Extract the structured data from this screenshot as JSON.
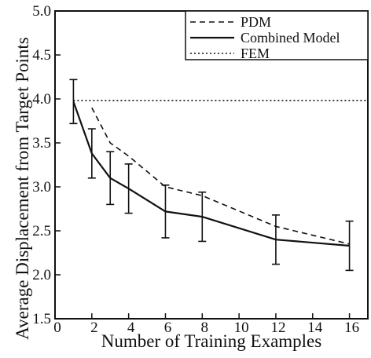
{
  "chart_data": {
    "type": "line",
    "title": "",
    "xlabel": "Number of Training Examples",
    "ylabel": "Average Displacement from Target Points",
    "xlim": [
      0,
      17
    ],
    "ylim": [
      1.5,
      5.0
    ],
    "xticks": [
      0,
      2,
      4,
      6,
      8,
      10,
      12,
      14,
      16
    ],
    "yticks": [
      1.5,
      2.0,
      2.5,
      3.0,
      3.5,
      4.0,
      4.5,
      5.0
    ],
    "ytick_labels": [
      "1.5",
      "2.0",
      "2.5",
      "3.0",
      "3.5",
      "4.0",
      "4.5",
      "5.0"
    ],
    "grid": false,
    "legend_position": "top-right",
    "series": [
      {
        "name": "PDM",
        "style": "dashed",
        "color": "#111111",
        "x": [
          2,
          3,
          4,
          6,
          8,
          12,
          16
        ],
        "y": [
          3.9,
          3.5,
          3.35,
          3.0,
          2.9,
          2.55,
          2.35
        ]
      },
      {
        "name": "Combined Model",
        "style": "solid",
        "color": "#111111",
        "x": [
          1,
          2,
          3,
          4,
          6,
          8,
          12,
          16
        ],
        "y": [
          3.97,
          3.38,
          3.1,
          2.98,
          2.72,
          2.66,
          2.4,
          2.33
        ],
        "error": [
          0.25,
          0.28,
          0.3,
          0.28,
          0.3,
          0.28,
          0.28,
          0.28
        ]
      },
      {
        "name": "FEM",
        "style": "dotted",
        "color": "#111111",
        "x": [
          1,
          16.9
        ],
        "y": [
          3.98,
          3.98
        ]
      }
    ]
  }
}
